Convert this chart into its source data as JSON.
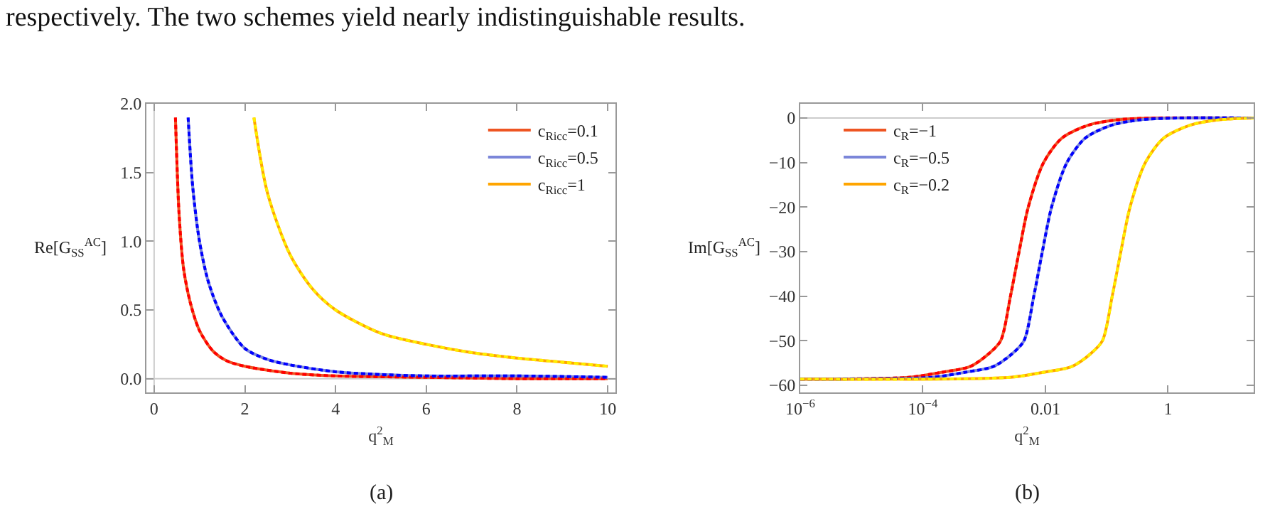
{
  "chart_data": [
    {
      "type": "line",
      "xlabel": "q$^{2}$$_{M}$",
      "ylabel": "Re[G$_{SS}$$^{AC}$]",
      "annotations": [
        "respectively. The two schemes yield nearly indistinguishable results.",
        "(a)"
      ],
      "xlim": [
        -0.17,
        10.17
      ],
      "ylim": [
        -0.1,
        2.0
      ],
      "xticks": [
        0,
        2,
        4,
        6,
        8,
        10
      ],
      "yticks": [
        {
          "value": 0,
          "label": "0.0"
        },
        {
          "value": 0.5,
          "label": "0.5"
        },
        {
          "value": 1,
          "label": "1.0"
        },
        {
          "value": 1.5,
          "label": "1.5"
        },
        {
          "value": 2,
          "label": "2.0"
        }
      ],
      "grid": false,
      "legend": "top right",
      "marker": "none",
      "ref_lines": [
        {
          "axis": "y",
          "value": 0,
          "color": "#cccccc"
        },
        {
          "axis": "x",
          "value": 0,
          "color": "#cccccc"
        }
      ],
      "series": [
        {
          "name": "c$_{Ricc}$=0.1",
          "color": "#ee5522",
          "line_style": "solid",
          "x": [
            0.47,
            0.55,
            0.65,
            0.8,
            1.0,
            1.3,
            1.6,
            2,
            3,
            4,
            6,
            8,
            10
          ],
          "values": [
            1.9,
            1.2,
            0.8,
            0.55,
            0.35,
            0.2,
            0.13,
            0.09,
            0.04,
            0.02,
            0.01,
            0,
            0
          ]
        },
        {
          "name": "c$_{Ricc}$=0.5",
          "color": "#7b86d9",
          "line_style": "solid",
          "x": [
            0.75,
            0.85,
            1.0,
            1.2,
            1.5,
            2,
            2.5,
            3,
            4,
            5,
            6,
            8,
            10
          ],
          "values": [
            1.9,
            1.4,
            1.0,
            0.7,
            0.45,
            0.22,
            0.14,
            0.1,
            0.05,
            0.03,
            0.02,
            0.02,
            0.01
          ]
        },
        {
          "name": "c$_{Ricc}$=1",
          "color": "#ffa500",
          "line_style": "solid",
          "x": [
            2.2,
            2.5,
            3,
            3.5,
            4,
            5,
            6,
            7,
            8,
            9,
            10
          ],
          "values": [
            1.9,
            1.35,
            0.9,
            0.65,
            0.5,
            0.33,
            0.25,
            0.19,
            0.15,
            0.12,
            0.09
          ]
        },
        {
          "color": "#ff0000",
          "line_style": "dashed",
          "x": [
            0.47,
            0.55,
            0.65,
            0.8,
            1.0,
            1.3,
            1.6,
            2,
            3,
            4,
            6,
            8,
            10
          ],
          "values": [
            1.9,
            1.2,
            0.8,
            0.55,
            0.35,
            0.2,
            0.13,
            0.09,
            0.04,
            0.02,
            0.01,
            0,
            0
          ]
        },
        {
          "color": "#0000ff",
          "line_style": "dashed",
          "x": [
            0.75,
            0.85,
            1.0,
            1.2,
            1.5,
            2,
            2.5,
            3,
            4,
            5,
            6,
            8,
            10
          ],
          "values": [
            1.9,
            1.4,
            1.0,
            0.7,
            0.45,
            0.22,
            0.14,
            0.1,
            0.05,
            0.03,
            0.02,
            0.02,
            0.01
          ]
        },
        {
          "color": "#ffee00",
          "line_style": "dashed",
          "x": [
            2.2,
            2.5,
            3,
            3.5,
            4,
            5,
            6,
            7,
            8,
            9,
            10
          ],
          "values": [
            1.9,
            1.35,
            0.9,
            0.65,
            0.5,
            0.33,
            0.25,
            0.19,
            0.15,
            0.12,
            0.09
          ]
        }
      ]
    },
    {
      "type": "line",
      "xlabel": "q$^{2}$$_{M}$",
      "ylabel": "Im[G$_{SS}$$^{AC}$]",
      "annotations": [
        "(b)"
      ],
      "log": "x",
      "xlim": [
        1e-06,
        25
      ],
      "ylim": [
        -61.6,
        3.2
      ],
      "xticks": [
        {
          "value": 1e-06,
          "label": "10$^{−6}$"
        },
        {
          "value": 0.0001,
          "label": "10$^{−4}$"
        },
        0.01,
        1
      ],
      "yticks": [
        {
          "value": -60,
          "label": "−60"
        },
        {
          "value": -50,
          "label": "−50"
        },
        {
          "value": -40,
          "label": "−40"
        },
        {
          "value": -30,
          "label": "−30"
        },
        {
          "value": -20,
          "label": "−20"
        },
        {
          "value": -10,
          "label": "−10"
        },
        0
      ],
      "grid": false,
      "legend": "top left",
      "marker": "none",
      "ref_lines": [
        {
          "axis": "y",
          "value": 0,
          "color": "#cccccc"
        }
      ],
      "series": [
        {
          "name": "c$_{R}$=−1",
          "color": "#ee5522",
          "line_style": "solid",
          "x": [
            1e-06,
            5.89e-05,
            0.0002,
            0.000589,
            0.00117,
            0.00186,
            0.00269,
            0.00372,
            0.00525,
            0.00933,
            0.0186,
            0.0501,
            0.148,
            0.589,
            25
          ],
          "values": [
            -58.6,
            -58.2,
            -57.1,
            -55.8,
            -53,
            -50,
            -40,
            -30,
            -20,
            -10,
            -4.5,
            -1.6,
            -0.4,
            0,
            0
          ]
        },
        {
          "name": "c$_{R}$=−0.5",
          "color": "#7b86d9",
          "line_style": "solid",
          "x": [
            1e-06,
            0.000141,
            0.000479,
            0.00141,
            0.00282,
            0.00447,
            0.00646,
            0.00891,
            0.0126,
            0.0224,
            0.0447,
            0.12,
            0.355,
            1.41,
            25
          ],
          "values": [
            -58.6,
            -58.2,
            -57.1,
            -55.8,
            -53,
            -50,
            -40,
            -30,
            -20,
            -10,
            -4.5,
            -1.6,
            -0.4,
            0,
            0
          ]
        },
        {
          "name": "c$_{R}$=−0.2",
          "color": "#ffa500",
          "line_style": "solid",
          "x": [
            1e-06,
            0.00269,
            0.00912,
            0.0269,
            0.0537,
            0.0851,
            0.123,
            0.17,
            0.24,
            0.427,
            0.851,
            2.29,
            6.76,
            25
          ],
          "values": [
            -58.6,
            -58.2,
            -57.1,
            -55.8,
            -53,
            -50,
            -40,
            -30,
            -20,
            -10,
            -4.5,
            -1.6,
            -0.4,
            0
          ]
        },
        {
          "color": "#ff0000",
          "line_style": "dashed",
          "x": [
            1e-06,
            5.89e-05,
            0.0002,
            0.000589,
            0.00117,
            0.00186,
            0.00269,
            0.00372,
            0.00525,
            0.00933,
            0.0186,
            0.0501,
            0.148,
            0.589,
            25
          ],
          "values": [
            -58.6,
            -58.2,
            -57.1,
            -55.8,
            -53,
            -50,
            -40,
            -30,
            -20,
            -10,
            -4.5,
            -1.6,
            -0.4,
            0,
            0
          ]
        },
        {
          "color": "#0000ff",
          "line_style": "dashed",
          "x": [
            1e-06,
            0.000141,
            0.000479,
            0.00141,
            0.00282,
            0.00447,
            0.00646,
            0.00891,
            0.0126,
            0.0224,
            0.0447,
            0.12,
            0.355,
            1.41,
            25
          ],
          "values": [
            -58.6,
            -58.2,
            -57.1,
            -55.8,
            -53,
            -50,
            -40,
            -30,
            -20,
            -10,
            -4.5,
            -1.6,
            -0.4,
            0,
            0
          ]
        },
        {
          "color": "#ffee00",
          "line_style": "dashed",
          "x": [
            1e-06,
            0.00269,
            0.00912,
            0.0269,
            0.0537,
            0.0851,
            0.123,
            0.17,
            0.24,
            0.427,
            0.851,
            2.29,
            6.76,
            25
          ],
          "values": [
            -58.6,
            -58.2,
            -57.1,
            -55.8,
            -53,
            -50,
            -40,
            -30,
            -20,
            -10,
            -4.5,
            -1.6,
            -0.4,
            0
          ]
        }
      ]
    }
  ]
}
